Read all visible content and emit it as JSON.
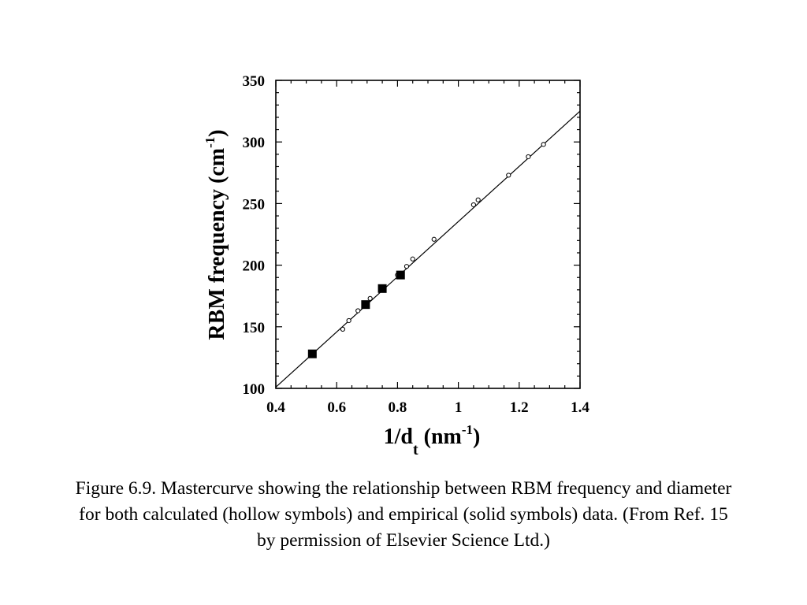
{
  "chart_data": {
    "type": "scatter",
    "xlabel_main": "1/d",
    "xlabel_sub": "t",
    "xlabel_unit": " (nm",
    "xlabel_sup": "-1",
    "xlabel_close": ")",
    "ylabel_main": "RBM frequency (cm",
    "ylabel_sup": "-1",
    "ylabel_close": ")",
    "xlim": [
      0.4,
      1.4
    ],
    "ylim": [
      100,
      350
    ],
    "x_ticks": [
      "0.4",
      "0.6",
      "0.8",
      "1",
      "1.2",
      "1.4"
    ],
    "y_ticks": [
      "100",
      "150",
      "200",
      "250",
      "300",
      "350"
    ],
    "grid": false,
    "series": [
      {
        "marker": "hollow-circle",
        "x": [
          0.62,
          0.64,
          0.67,
          0.71,
          0.75,
          0.8,
          0.83,
          0.85,
          0.92,
          1.05,
          1.065,
          1.165,
          1.23,
          1.28
        ],
        "y": [
          148,
          155,
          163,
          173,
          182,
          192,
          199,
          205,
          221,
          249,
          253,
          273,
          288,
          298
        ]
      },
      {
        "marker": "solid-square",
        "x": [
          0.52,
          0.695,
          0.75,
          0.81
        ],
        "y": [
          128,
          168,
          181,
          192
        ]
      },
      {
        "marker": "line",
        "x": [
          0.4,
          1.4
        ],
        "y": [
          101,
          325
        ]
      }
    ]
  },
  "caption": "Figure 6.9. Mastercurve showing the relationship between RBM frequency and diameter for both calculated (hollow symbols) and empirical (solid symbols) data.  (From Ref. 15 by permission of Elsevier Science Ltd.)"
}
